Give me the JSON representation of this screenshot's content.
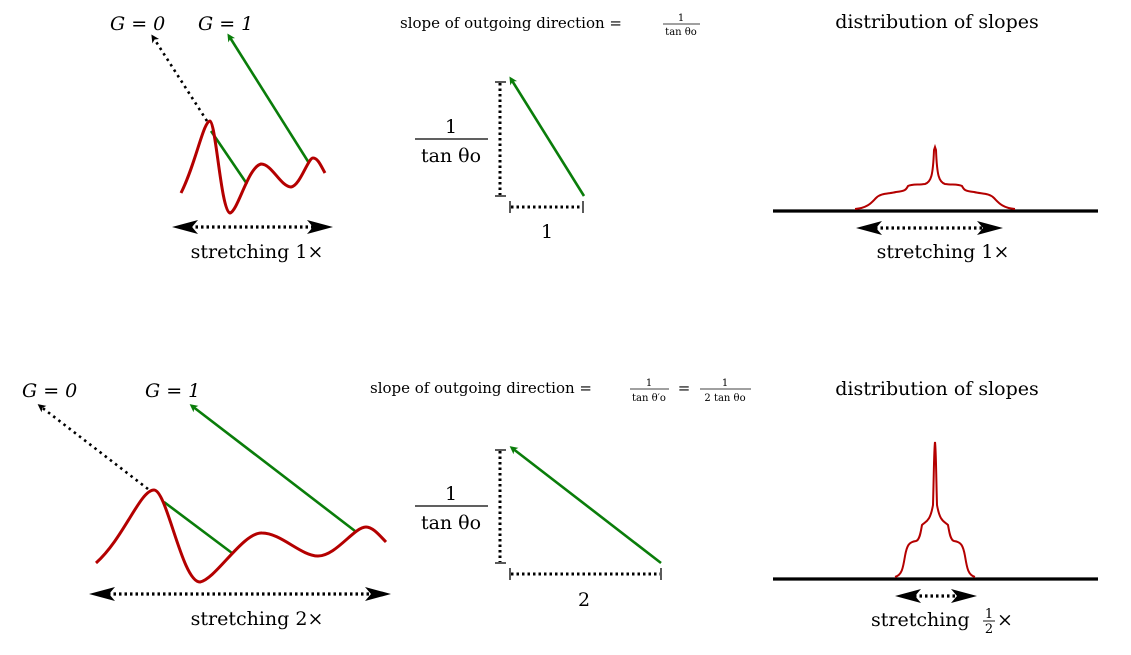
{
  "colors": {
    "surface": "#b40000",
    "direction": "#0a7d0a",
    "reference": "#000000"
  },
  "top_row": {
    "label_g0": "G = 0",
    "label_g1": "G = 1",
    "stretch_label": "stretching 1×",
    "slope_title": "slope of outgoing direction = ",
    "slope_frac_num": "1",
    "slope_frac_den": "tan θo",
    "tri_vertical_num": "1",
    "tri_vertical_den": "tan θo",
    "tri_horizontal": "1",
    "dist_title": "distribution of slopes",
    "dist_stretch_label": "stretching 1×"
  },
  "bottom_row": {
    "label_g0": "G = 0",
    "label_g1": "G = 1",
    "stretch_label": "stretching 2×",
    "slope_title": "slope of outgoing direction = ",
    "slope_frac1_num": "1",
    "slope_frac1_den": "tan θ′o",
    "equals": "=",
    "slope_frac2_num": "1",
    "slope_frac2_den": "2 tan θo",
    "tri_vertical_num": "1",
    "tri_vertical_den": "tan θo",
    "tri_horizontal": "2",
    "dist_title": "distribution of slopes",
    "dist_stretch_prefix": "stretching ",
    "dist_stretch_num": "1",
    "dist_stretch_den": "2",
    "dist_stretch_suffix": "×"
  }
}
